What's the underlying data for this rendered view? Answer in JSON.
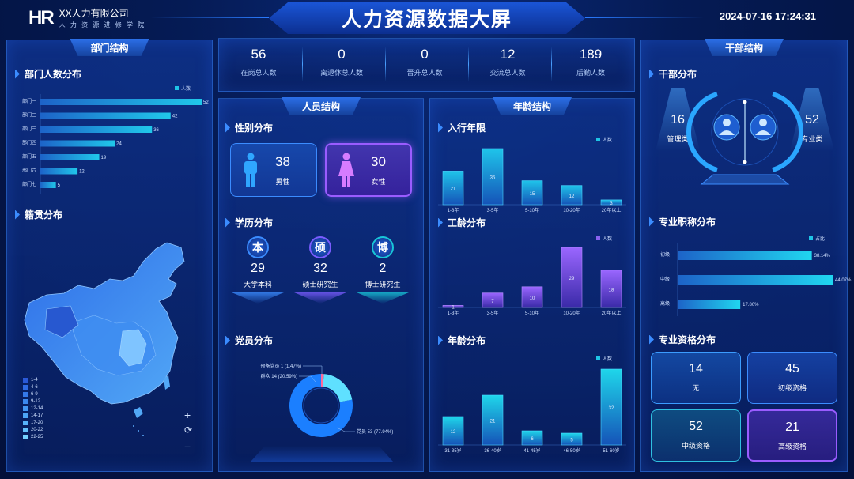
{
  "header": {
    "logo_mark": "HR",
    "org_name": "XX人力有限公司",
    "org_sub": "人 力 资 源 进 修 学 院",
    "title": "人力资源数据大屏",
    "datetime": "2024-07-16 17:24:31"
  },
  "left": {
    "title": "部门结构",
    "dept_section": "部门人数分布",
    "dept_legend": "人数",
    "dept_data": {
      "type": "bar",
      "orientation": "horizontal",
      "categories": [
        "部门一",
        "部门二",
        "部门三",
        "部门四",
        "部门五",
        "部门六",
        "部门七"
      ],
      "values": [
        52,
        42,
        36,
        24,
        19,
        12,
        5
      ],
      "xlim": [
        0,
        52
      ]
    },
    "native_section": "籍贯分布",
    "map_legend": [
      "1-4",
      "4-6",
      "6-9",
      "9-12",
      "12-14",
      "14-17",
      "17-20",
      "20-22",
      "22-25"
    ],
    "map_legend_colors": [
      "#2a59d8",
      "#2f6ae4",
      "#3479ea",
      "#3b88f0",
      "#4396f4",
      "#4ca5f7",
      "#56b2fa",
      "#62c0fc",
      "#73d0ff"
    ],
    "map_controls": {
      "zoom_in": "+",
      "reset": "⟳",
      "zoom_out": "−"
    }
  },
  "stats": [
    {
      "value": "56",
      "label": "在岗总人数"
    },
    {
      "value": "0",
      "label": "离退休总人数"
    },
    {
      "value": "0",
      "label": "晋升总人数"
    },
    {
      "value": "12",
      "label": "交流总人数"
    },
    {
      "value": "189",
      "label": "后勤人数"
    }
  ],
  "personnel": {
    "title": "人员结构",
    "gender_section": "性别分布",
    "male": {
      "value": "38",
      "label": "男性"
    },
    "female": {
      "value": "30",
      "label": "女性"
    },
    "edu_section": "学历分布",
    "edu": [
      {
        "badge": "本",
        "value": "29",
        "label": "大学本科",
        "color": "#3b8cff"
      },
      {
        "badge": "硕",
        "value": "32",
        "label": "硕士研究生",
        "color": "#7a5cff"
      },
      {
        "badge": "博",
        "value": "2",
        "label": "博士研究生",
        "color": "#18c6d8"
      }
    ],
    "party_section": "党员分布",
    "party_chart": {
      "type": "pie",
      "labels": [
        "预备党员",
        "群众",
        "党员"
      ],
      "values": [
        1,
        14,
        53
      ],
      "percents": [
        "1.47%",
        "20.59%",
        "77.94%"
      ],
      "label_texts": [
        "预备党员 1 (1.47%)",
        "群众 14 (20.59%)",
        "党员 53 (77.94%)"
      ],
      "colors": [
        "#ff6b9a",
        "#5fe0ff",
        "#1b7fff"
      ]
    }
  },
  "age": {
    "title": "年龄结构",
    "entry_section": "入行年限",
    "work_section": "工龄分布",
    "age_section": "年龄分布",
    "legend": "人数",
    "entry_chart": {
      "type": "bar",
      "categories": [
        "1-3年",
        "3-5年",
        "5-10年",
        "10-20年",
        "20年以上"
      ],
      "values": [
        21,
        35,
        15,
        12,
        3
      ],
      "ylim": [
        0,
        35
      ]
    },
    "work_chart": {
      "type": "bar",
      "categories": [
        "1-3年",
        "3-5年",
        "5-10年",
        "10-20年",
        "20年以上"
      ],
      "values": [
        1,
        7,
        10,
        29,
        18
      ],
      "ylim": [
        0,
        29
      ]
    },
    "age_chart": {
      "type": "bar",
      "categories": [
        "31-35岁",
        "36-40岁",
        "41-45岁",
        "46-50岁",
        "51-60岁"
      ],
      "values": [
        12,
        21,
        6,
        5,
        32
      ],
      "ylim": [
        0,
        32
      ]
    }
  },
  "cadre": {
    "title": "干部结构",
    "dist_section": "干部分布",
    "mgmt": {
      "value": "16",
      "label": "管理类"
    },
    "prof": {
      "value": "52",
      "label": "专业类"
    },
    "title_section": "专业职称分布",
    "title_legend": "占比",
    "title_chart": {
      "type": "bar",
      "orientation": "horizontal",
      "categories": [
        "初级",
        "中级",
        "高级"
      ],
      "values": [
        38.14,
        44.07,
        17.8
      ],
      "labels": [
        "38.14%",
        "44.07%",
        "17.80%"
      ],
      "xlim": [
        0,
        44.07
      ]
    },
    "qual_section": "专业资格分布",
    "quals": [
      {
        "value": "14",
        "label": "无"
      },
      {
        "value": "45",
        "label": "初级资格"
      },
      {
        "value": "52",
        "label": "中级资格"
      },
      {
        "value": "21",
        "label": "高级资格"
      }
    ]
  },
  "chart_data": [
    {
      "type": "bar",
      "orientation": "horizontal",
      "categories": [
        "部门一",
        "部门二",
        "部门三",
        "部门四",
        "部门五",
        "部门六",
        "部门七"
      ],
      "series": [
        {
          "name": "人数",
          "values": [
            52,
            42,
            36,
            24,
            19,
            12,
            5
          ]
        }
      ]
    },
    {
      "type": "bar",
      "categories": [
        "1-3年",
        "3-5年",
        "5-10年",
        "10-20年",
        "20年以上"
      ],
      "series": [
        {
          "name": "人数",
          "values": [
            21,
            35,
            15,
            12,
            3
          ]
        }
      ]
    },
    {
      "type": "bar",
      "categories": [
        "1-3年",
        "3-5年",
        "5-10年",
        "10-20年",
        "20年以上"
      ],
      "series": [
        {
          "name": "人数",
          "values": [
            1,
            7,
            10,
            29,
            18
          ]
        }
      ]
    },
    {
      "type": "bar",
      "categories": [
        "31-35岁",
        "36-40岁",
        "41-45岁",
        "46-50岁",
        "51-60岁"
      ],
      "series": [
        {
          "name": "人数",
          "values": [
            12,
            21,
            6,
            5,
            32
          ]
        }
      ]
    },
    {
      "type": "pie",
      "categories": [
        "预备党员",
        "群众",
        "党员"
      ],
      "values": [
        1,
        14,
        53
      ]
    },
    {
      "type": "bar",
      "orientation": "horizontal",
      "categories": [
        "初级",
        "中级",
        "高级"
      ],
      "series": [
        {
          "name": "占比",
          "values": [
            38.14,
            44.07,
            17.8
          ]
        }
      ]
    }
  ]
}
